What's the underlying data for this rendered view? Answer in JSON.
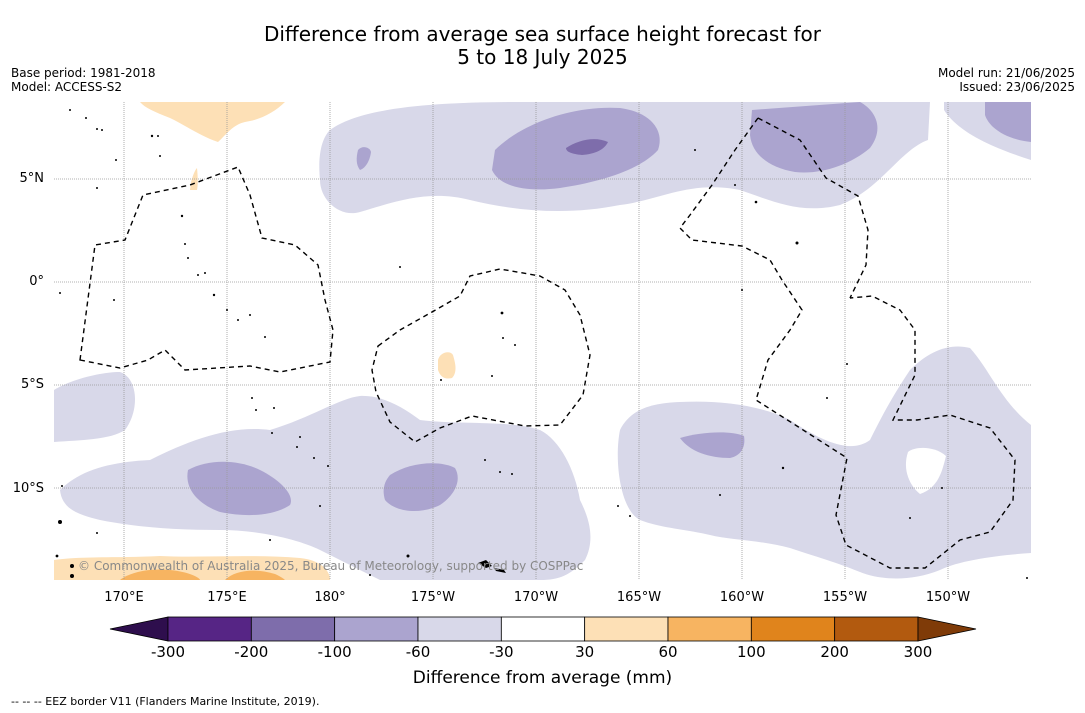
{
  "title_line1": "Difference from average sea surface height forecast for",
  "title_line2": "5 to 18 July 2025",
  "base_period": "Base period: 1981-2018",
  "model": "Model: ACCESS-S2",
  "model_run": "Model run: 21/06/2025",
  "issued": "Issued: 23/06/2025",
  "lat_labels": [
    "5°N",
    "0°",
    "5°S",
    "10°S"
  ],
  "lon_labels": [
    "170°E",
    "175°E",
    "180°",
    "175°W",
    "170°W",
    "165°W",
    "160°W",
    "155°W",
    "150°W"
  ],
  "copyright": "© Commonwealth of Australia 2025, Bureau of Meteorology, supported by COSPPac",
  "colorbar": {
    "ticks": [
      "-300",
      "-200",
      "-100",
      "-60",
      "-30",
      "30",
      "60",
      "100",
      "200",
      "300"
    ],
    "colors": [
      "#2e0e4d",
      "#562585",
      "#7e6dab",
      "#aba4cf",
      "#d8d8e9",
      "#ffffff",
      "#fde0b6",
      "#f7b461",
      "#e0841c",
      "#b25a0f",
      "#7f3b08"
    ],
    "title": "Difference from average (mm)"
  },
  "footnote": "--  --  -- EEZ border V11 (Flanders Marine Institute, 2019)."
}
